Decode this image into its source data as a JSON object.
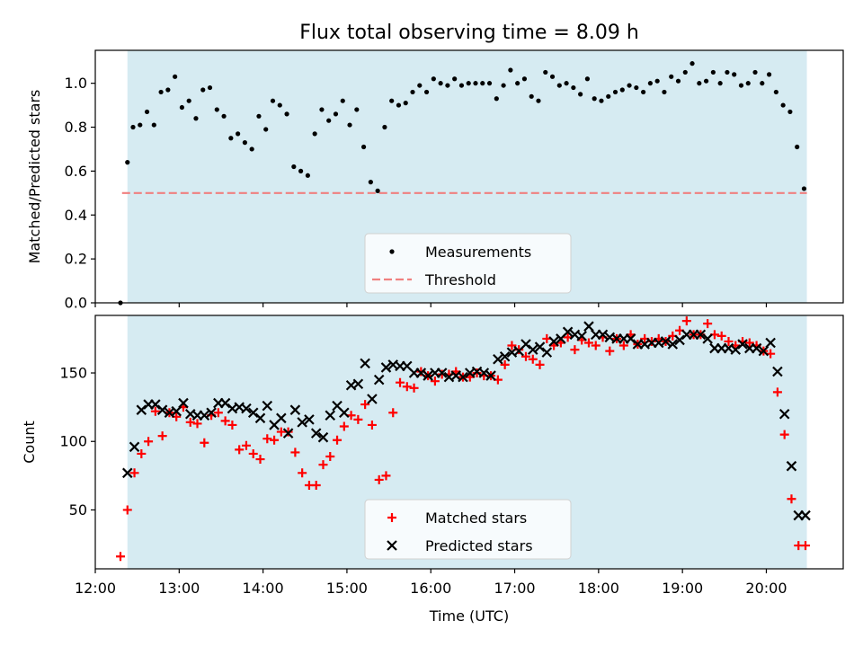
{
  "title": "Flux total observing time = 8.09 h",
  "colors": {
    "shade": "#add8e6",
    "measurement": "#000000",
    "threshold": "#f08080",
    "matched": "#ff0000",
    "predicted": "#000000"
  },
  "chart_data": [
    {
      "type": "scatter",
      "ylabel": "Matched/Predicted stars",
      "xlabel": "",
      "xlim": [
        "12:00",
        "20:55"
      ],
      "ylim": [
        0,
        1.15
      ],
      "yticks": [
        "0.0",
        "0.2",
        "0.4",
        "0.6",
        "0.8",
        "1.0"
      ],
      "shaded_span": [
        "12:23",
        "20:29"
      ],
      "legend_position": "lower center",
      "legend": [
        "Measurements",
        "Threshold"
      ],
      "threshold": 0.5,
      "series": [
        {
          "name": "Measurements",
          "marker": "dot",
          "x": [
            "12:18",
            "12:23",
            "12:27",
            "12:32",
            "12:37",
            "12:42",
            "12:47",
            "12:52",
            "12:57",
            "13:02",
            "13:07",
            "13:12",
            "13:17",
            "13:22",
            "13:27",
            "13:32",
            "13:37",
            "13:42",
            "13:47",
            "13:52",
            "13:57",
            "14:02",
            "14:07",
            "14:12",
            "14:17",
            "14:22",
            "14:27",
            "14:32",
            "14:37",
            "14:42",
            "14:47",
            "14:52",
            "14:57",
            "15:02",
            "15:07",
            "15:12",
            "15:17",
            "15:22",
            "15:27",
            "15:32",
            "15:37",
            "15:42",
            "15:47",
            "15:52",
            "15:57",
            "16:02",
            "16:07",
            "16:12",
            "16:17",
            "16:22",
            "16:27",
            "16:32",
            "16:37",
            "16:42",
            "16:47",
            "16:52",
            "16:57",
            "17:02",
            "17:07",
            "17:12",
            "17:17",
            "17:22",
            "17:27",
            "17:32",
            "17:37",
            "17:42",
            "17:47",
            "17:52",
            "17:57",
            "18:02",
            "18:07",
            "18:12",
            "18:17",
            "18:22",
            "18:27",
            "18:32",
            "18:37",
            "18:42",
            "18:47",
            "18:52",
            "18:57",
            "19:02",
            "19:07",
            "19:12",
            "19:17",
            "19:22",
            "19:27",
            "19:32",
            "19:37",
            "19:42",
            "19:47",
            "19:52",
            "19:57",
            "20:02",
            "20:07",
            "20:12",
            "20:17",
            "20:22",
            "20:27"
          ],
          "values": [
            0.0,
            0.64,
            0.8,
            0.81,
            0.87,
            0.81,
            0.96,
            0.97,
            1.03,
            0.89,
            0.92,
            0.84,
            0.97,
            0.98,
            0.88,
            0.85,
            0.75,
            0.77,
            0.73,
            0.7,
            0.85,
            0.79,
            0.92,
            0.9,
            0.86,
            0.62,
            0.6,
            0.58,
            0.77,
            0.88,
            0.83,
            0.86,
            0.92,
            0.81,
            0.88,
            0.71,
            0.55,
            0.51,
            0.8,
            0.92,
            0.9,
            0.91,
            0.96,
            0.99,
            0.96,
            1.02,
            1.0,
            0.99,
            1.02,
            0.99,
            1.0,
            1.0,
            1.0,
            1.0,
            0.93,
            0.99,
            1.06,
            1.0,
            1.02,
            0.94,
            0.92,
            1.05,
            1.03,
            0.99,
            1.0,
            0.98,
            0.95,
            1.02,
            0.93,
            0.92,
            0.94,
            0.96,
            0.97,
            0.99,
            0.98,
            0.96,
            1.0,
            1.01,
            0.96,
            1.03,
            1.01,
            1.05,
            1.09,
            1.0,
            1.01,
            1.05,
            1.0,
            1.05,
            1.04,
            0.99,
            1.0,
            1.05,
            1.0,
            1.04,
            0.96,
            0.9,
            0.87,
            0.71,
            0.52
          ]
        }
      ]
    },
    {
      "type": "scatter",
      "ylabel": "Count",
      "xlabel": "Time (UTC)",
      "xlim": [
        "12:00",
        "20:55"
      ],
      "ylim": [
        7,
        192
      ],
      "yticks": [
        "50",
        "100",
        "150"
      ],
      "xticks": [
        "12:00",
        "13:00",
        "14:00",
        "15:00",
        "16:00",
        "17:00",
        "18:00",
        "19:00",
        "20:00"
      ],
      "shaded_span": [
        "12:23",
        "20:29"
      ],
      "legend_position": "lower center",
      "legend": [
        "Matched stars",
        "Predicted stars"
      ],
      "series": [
        {
          "name": "Matched stars",
          "marker": "plus",
          "x": [
            "12:18",
            "12:23",
            "12:28",
            "12:33",
            "12:38",
            "12:43",
            "12:48",
            "12:53",
            "12:58",
            "13:03",
            "13:08",
            "13:13",
            "13:18",
            "13:23",
            "13:28",
            "13:33",
            "13:38",
            "13:43",
            "13:48",
            "13:53",
            "13:58",
            "14:03",
            "14:08",
            "14:13",
            "14:18",
            "14:23",
            "14:28",
            "14:33",
            "14:38",
            "14:43",
            "14:48",
            "14:53",
            "14:58",
            "15:03",
            "15:08",
            "15:13",
            "15:18",
            "15:23",
            "15:28",
            "15:33",
            "15:38",
            "15:43",
            "15:48",
            "15:53",
            "15:58",
            "16:03",
            "16:08",
            "16:13",
            "16:18",
            "16:23",
            "16:28",
            "16:33",
            "16:38",
            "16:43",
            "16:48",
            "16:53",
            "16:58",
            "17:03",
            "17:08",
            "17:13",
            "17:18",
            "17:23",
            "17:28",
            "17:33",
            "17:38",
            "17:43",
            "17:48",
            "17:53",
            "17:58",
            "18:03",
            "18:08",
            "18:13",
            "18:18",
            "18:23",
            "18:28",
            "18:33",
            "18:38",
            "18:43",
            "18:48",
            "18:53",
            "18:58",
            "19:03",
            "19:08",
            "19:13",
            "19:18",
            "19:23",
            "19:28",
            "19:33",
            "19:38",
            "19:43",
            "19:48",
            "19:53",
            "19:58",
            "20:03",
            "20:08",
            "20:13",
            "20:18",
            "20:23",
            "20:28"
          ],
          "values": [
            16,
            50,
            77,
            91,
            100,
            122,
            104,
            121,
            118,
            125,
            114,
            113,
            99,
            119,
            121,
            115,
            112,
            94,
            97,
            91,
            87,
            102,
            101,
            107,
            107,
            92,
            77,
            68,
            68,
            83,
            89,
            101,
            111,
            119,
            116,
            127,
            112,
            72,
            75,
            121,
            143,
            140,
            139,
            151,
            148,
            144,
            149,
            149,
            151,
            147,
            147,
            150,
            148,
            148,
            145,
            156,
            170,
            167,
            162,
            160,
            156,
            175,
            170,
            172,
            176,
            167,
            174,
            172,
            170,
            176,
            166,
            175,
            170,
            178,
            171,
            175,
            173,
            175,
            173,
            177,
            181,
            188,
            178,
            178,
            186,
            178,
            177,
            173,
            170,
            173,
            172,
            170,
            166,
            164,
            136,
            105,
            58,
            24,
            24
          ]
        },
        {
          "name": "Predicted stars",
          "marker": "x",
          "x": [
            "12:23",
            "12:28",
            "12:33",
            "12:38",
            "12:43",
            "12:48",
            "12:53",
            "12:58",
            "13:03",
            "13:08",
            "13:13",
            "13:18",
            "13:23",
            "13:28",
            "13:33",
            "13:38",
            "13:43",
            "13:48",
            "13:53",
            "13:58",
            "14:03",
            "14:08",
            "14:13",
            "14:18",
            "14:23",
            "14:28",
            "14:33",
            "14:38",
            "14:43",
            "14:48",
            "14:53",
            "14:58",
            "15:03",
            "15:08",
            "15:13",
            "15:18",
            "15:23",
            "15:28",
            "15:33",
            "15:38",
            "15:43",
            "15:48",
            "15:53",
            "15:58",
            "16:03",
            "16:08",
            "16:13",
            "16:18",
            "16:23",
            "16:28",
            "16:33",
            "16:38",
            "16:43",
            "16:48",
            "16:53",
            "16:58",
            "17:03",
            "17:08",
            "17:13",
            "17:18",
            "17:23",
            "17:28",
            "17:33",
            "17:38",
            "17:43",
            "17:48",
            "17:53",
            "17:58",
            "18:03",
            "18:08",
            "18:13",
            "18:18",
            "18:23",
            "18:28",
            "18:33",
            "18:38",
            "18:43",
            "18:48",
            "18:53",
            "18:58",
            "19:03",
            "19:08",
            "19:13",
            "19:18",
            "19:23",
            "19:28",
            "19:33",
            "19:38",
            "19:43",
            "19:48",
            "19:53",
            "19:58",
            "20:03",
            "20:08",
            "20:13",
            "20:18",
            "20:23",
            "20:28"
          ],
          "values": [
            77,
            96,
            123,
            127,
            127,
            123,
            121,
            122,
            128,
            120,
            119,
            119,
            121,
            128,
            128,
            124,
            125,
            124,
            121,
            117,
            126,
            112,
            117,
            106,
            123,
            114,
            116,
            106,
            103,
            119,
            126,
            121,
            141,
            142,
            157,
            131,
            145,
            154,
            156,
            155,
            155,
            150,
            150,
            148,
            150,
            150,
            147,
            148,
            147,
            150,
            151,
            150,
            148,
            160,
            162,
            165,
            166,
            171,
            167,
            169,
            165,
            173,
            175,
            180,
            178,
            177,
            184,
            178,
            178,
            176,
            175,
            175,
            175,
            171,
            171,
            172,
            172,
            173,
            171,
            174,
            178,
            178,
            178,
            175,
            168,
            168,
            168,
            167,
            171,
            168,
            168,
            166,
            172,
            151,
            120,
            82,
            46,
            46
          ]
        }
      ]
    }
  ]
}
